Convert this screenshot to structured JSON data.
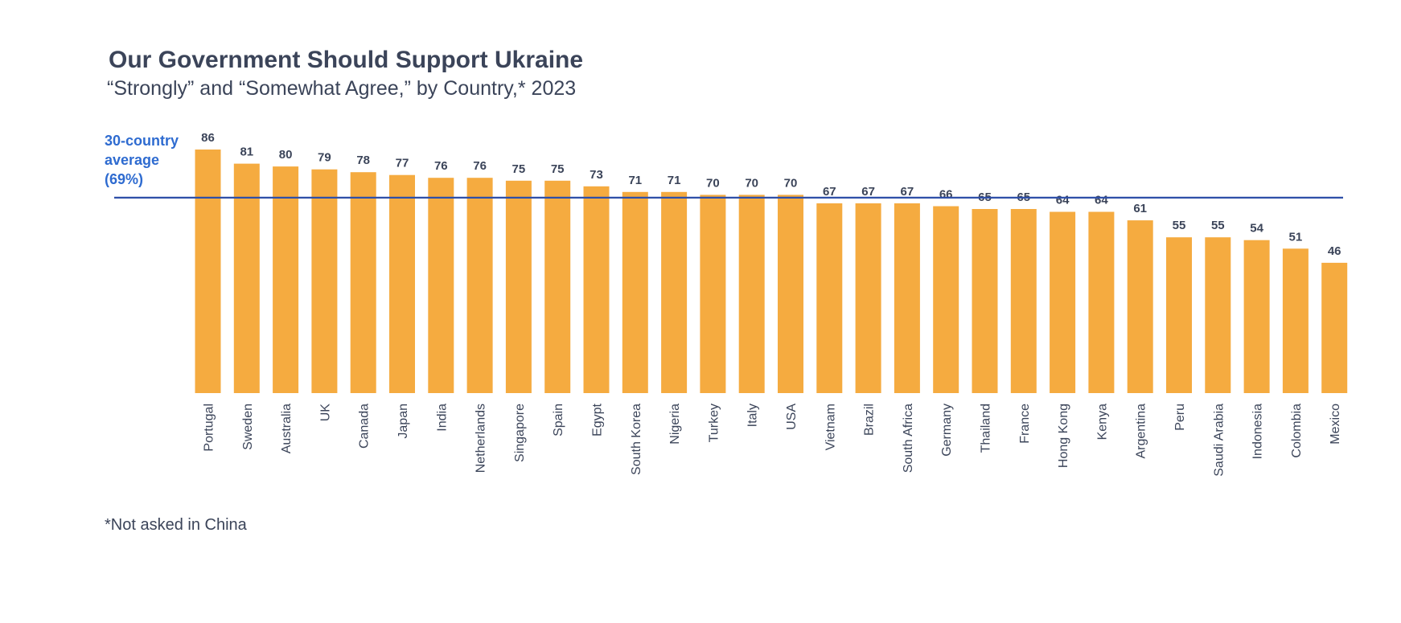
{
  "colors": {
    "bar": "#f5ab40",
    "average_line": "#2e4fa8",
    "average_text": "#2e6bd0",
    "text": "#3b4459"
  },
  "chart_data": {
    "type": "bar",
    "title": "Our Government Should Support Ukraine",
    "subtitle": "“Strongly” and “Somewhat Agree,” by Country,* 2023",
    "categories": [
      "Portugal",
      "Sweden",
      "Australia",
      "UK",
      "Canada",
      "Japan",
      "India",
      "Netherlands",
      "Singapore",
      "Spain",
      "Egypt",
      "South Korea",
      "Nigeria",
      "Turkey",
      "Italy",
      "USA",
      "Vietnam",
      "Brazil",
      "South Africa",
      "Germany",
      "Thailand",
      "France",
      "Hong Kong",
      "Kenya",
      "Argentina",
      "Peru",
      "Saudi Arabia",
      "Indonesia",
      "Colombia",
      "Mexico"
    ],
    "values": [
      86,
      81,
      80,
      79,
      78,
      77,
      76,
      76,
      75,
      75,
      73,
      71,
      71,
      70,
      70,
      70,
      67,
      67,
      67,
      66,
      65,
      65,
      64,
      64,
      61,
      55,
      55,
      54,
      51,
      46
    ],
    "ylim": [
      0,
      86
    ],
    "grid": false,
    "legend": "none",
    "reference_line": {
      "value": 69,
      "label_lines": [
        "30-country",
        "average",
        "(69%)"
      ]
    },
    "footnote": "*Not asked in China"
  }
}
